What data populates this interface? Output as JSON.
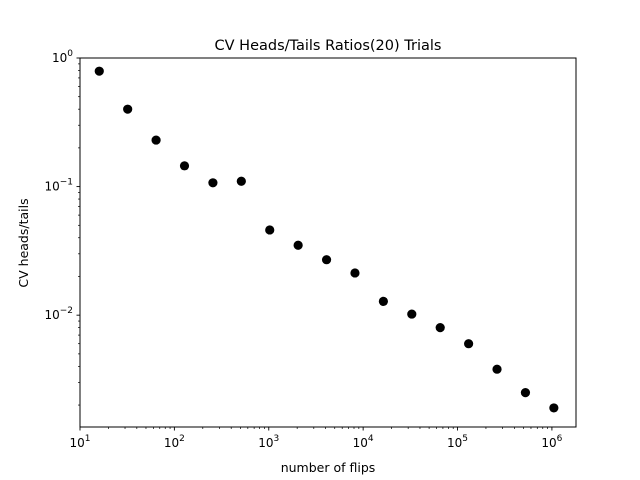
{
  "chart_data": {
    "type": "scatter",
    "title": "CV Heads/Tails Ratios(20) Trials",
    "xlabel": "number of flips",
    "ylabel": "CV heads/tails",
    "xscale": "log",
    "yscale": "log",
    "xlim": [
      10,
      1800000
    ],
    "ylim": [
      0.00135,
      1.0
    ],
    "grid": false,
    "legend": "none",
    "marker_color": "#000000",
    "x_ticks": [
      {
        "base": "10",
        "exp": "1"
      },
      {
        "base": "10",
        "exp": "2"
      },
      {
        "base": "10",
        "exp": "3"
      },
      {
        "base": "10",
        "exp": "4"
      },
      {
        "base": "10",
        "exp": "5"
      },
      {
        "base": "10",
        "exp": "6"
      }
    ],
    "y_ticks": [
      {
        "base": "10",
        "exp": "0"
      },
      {
        "base": "10",
        "exp": "−1"
      },
      {
        "base": "10",
        "exp": "−2"
      }
    ],
    "x": [
      16,
      32,
      64,
      128,
      256,
      512,
      1024,
      2048,
      4096,
      8192,
      16384,
      32768,
      65536,
      131072,
      262144,
      524288,
      1048576
    ],
    "y": [
      0.79,
      0.4,
      0.23,
      0.145,
      0.107,
      0.11,
      0.046,
      0.035,
      0.027,
      0.0213,
      0.0128,
      0.0102,
      0.008,
      0.006,
      0.0038,
      0.0025,
      0.0019
    ]
  }
}
